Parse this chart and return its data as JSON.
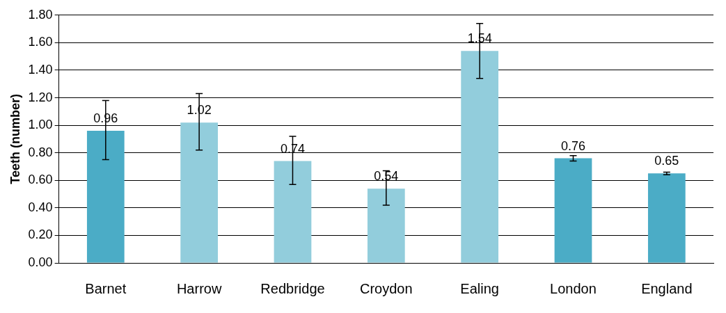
{
  "chart_data": {
    "type": "bar",
    "ylabel": "Teeth (number)",
    "categories": [
      "Barnet",
      "Harrow",
      "Redbridge",
      "Croydon",
      "Ealing",
      "London",
      "England"
    ],
    "values": [
      0.96,
      1.02,
      0.74,
      0.54,
      1.54,
      0.76,
      0.65
    ],
    "colors": [
      "#4bacc6",
      "#92cddc",
      "#92cddc",
      "#92cddc",
      "#92cddc",
      "#4bacc6",
      "#4bacc6"
    ],
    "errors": [
      [
        0.75,
        1.18
      ],
      [
        0.82,
        1.23
      ],
      [
        0.57,
        0.92
      ],
      [
        0.42,
        0.67
      ],
      [
        1.34,
        1.74
      ],
      [
        0.74,
        0.78
      ],
      [
        0.64,
        0.66
      ]
    ],
    "data_labels": true,
    "grid": "y",
    "legend": false,
    "ylim": [
      0,
      1.8
    ],
    "yticks": [
      {
        "value": 0,
        "label": "0.00"
      },
      {
        "value": 0.2,
        "label": "0.20"
      },
      {
        "value": 0.4,
        "label": "0.40"
      },
      {
        "value": 0.6,
        "label": "0.60"
      },
      {
        "value": 0.8,
        "label": "0.80"
      },
      {
        "value": 1,
        "label": "1.00"
      },
      {
        "value": 1.2,
        "label": "1.20"
      },
      {
        "value": 1.4,
        "label": "1.40"
      },
      {
        "value": 1.6,
        "label": "1.60"
      },
      {
        "value": 1.8,
        "label": "1.80"
      }
    ]
  }
}
